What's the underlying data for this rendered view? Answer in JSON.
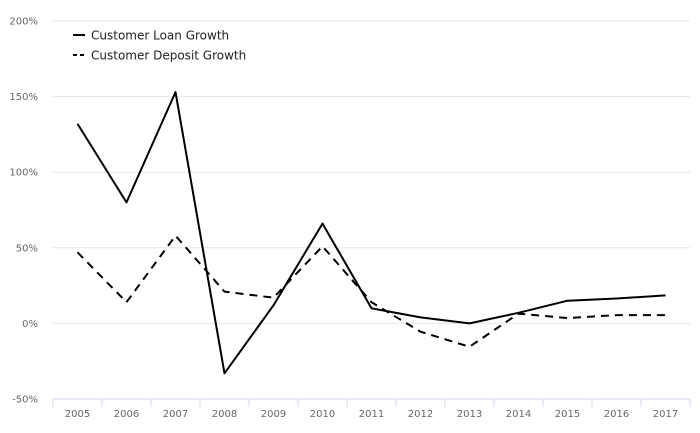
{
  "chart_data": {
    "type": "line",
    "title": "",
    "xlabel": "",
    "ylabel": "",
    "categories": [
      "2005",
      "2006",
      "2007",
      "2008",
      "2009",
      "2010",
      "2011",
      "2012",
      "2013",
      "2014",
      "2015",
      "2016",
      "2017"
    ],
    "y_ticks": [
      "200%",
      "150%",
      "100%",
      "50%",
      "0%",
      "-50%"
    ],
    "ylim": [
      -50,
      200
    ],
    "grid": true,
    "legend_position": "top-left",
    "series": [
      {
        "name": "Customer Loan Growth",
        "style": "solid",
        "color": "#000000",
        "values": [
          132,
          80,
          153,
          -33,
          12,
          66,
          10,
          4,
          0,
          7,
          15,
          16.5,
          18.5
        ]
      },
      {
        "name": "Customer Deposit Growth",
        "style": "dashed",
        "color": "#000000",
        "values": [
          47,
          14,
          58,
          21,
          17,
          51,
          14,
          -5.5,
          -15.5,
          6.5,
          3.5,
          5.5,
          5.5
        ]
      }
    ]
  },
  "colors": {
    "grid": "#e6e6e6",
    "axis": "#ccd6eb",
    "tick_text": "#666666"
  }
}
